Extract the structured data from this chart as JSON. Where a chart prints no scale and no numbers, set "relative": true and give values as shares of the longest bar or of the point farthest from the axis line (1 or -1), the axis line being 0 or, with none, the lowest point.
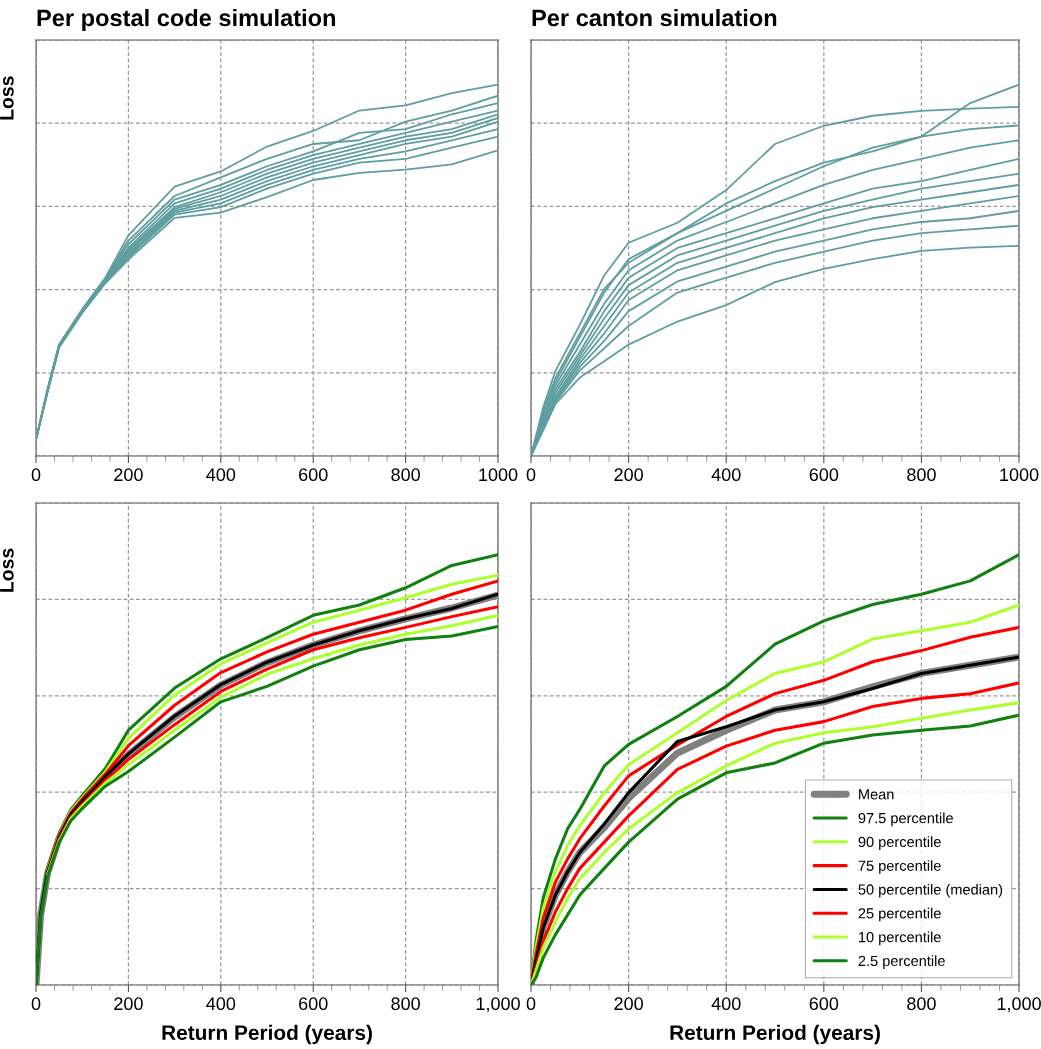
{
  "chart_data": [
    {
      "type": "line",
      "title": "Per postal code simulation",
      "ylabel": "Loss",
      "relative": true,
      "grid": true,
      "xlim": [
        0,
        1000
      ],
      "xticks": [
        0,
        {
          "value": 40,
          "label": null
        },
        {
          "value": 80,
          "label": null
        },
        {
          "value": 120,
          "label": null
        },
        {
          "value": 160,
          "label": null
        },
        200,
        {
          "value": 240,
          "label": null
        },
        {
          "value": 280,
          "label": null
        },
        {
          "value": 320,
          "label": null
        },
        {
          "value": 360,
          "label": null
        },
        400,
        {
          "value": 440,
          "label": null
        },
        {
          "value": 480,
          "label": null
        },
        {
          "value": 520,
          "label": null
        },
        {
          "value": 560,
          "label": null
        },
        600,
        {
          "value": 640,
          "label": null
        },
        {
          "value": 680,
          "label": null
        },
        {
          "value": 720,
          "label": null
        },
        {
          "value": 760,
          "label": null
        },
        800,
        {
          "value": 840,
          "label": null
        },
        {
          "value": 880,
          "label": null
        },
        {
          "value": 920,
          "label": null
        },
        {
          "value": 960,
          "label": null
        },
        1000
      ],
      "x": [
        0,
        25,
        50,
        100,
        150,
        200,
        300,
        400,
        500,
        600,
        700,
        800,
        900,
        1000
      ],
      "series": [
        {
          "color": "#5f9ea0",
          "values": [
            0.044,
            0.18,
            0.3,
            0.395,
            0.48,
            0.594,
            0.725,
            0.766,
            0.833,
            0.875,
            0.93,
            0.944,
            0.977,
            1
          ]
        },
        {
          "color": "#5f9ea0",
          "values": [
            0.044,
            0.179,
            0.299,
            0.394,
            0.478,
            0.58,
            0.7,
            0.75,
            0.8,
            0.84,
            0.85,
            0.9,
            0.93,
            0.97
          ]
        },
        {
          "color": "#5f9ea0",
          "values": [
            0.044,
            0.178,
            0.298,
            0.393,
            0.477,
            0.57,
            0.69,
            0.73,
            0.78,
            0.82,
            0.87,
            0.88,
            0.92,
            0.95
          ]
        },
        {
          "color": "#5f9ea0",
          "values": [
            0.044,
            0.177,
            0.298,
            0.392,
            0.476,
            0.56,
            0.68,
            0.72,
            0.77,
            0.81,
            0.84,
            0.87,
            0.9,
            0.93
          ]
        },
        {
          "color": "#5f9ea0",
          "values": [
            0.044,
            0.176,
            0.297,
            0.391,
            0.474,
            0.555,
            0.67,
            0.71,
            0.76,
            0.8,
            0.83,
            0.86,
            0.88,
            0.92
          ]
        },
        {
          "color": "#5f9ea0",
          "values": [
            0.044,
            0.176,
            0.297,
            0.39,
            0.473,
            0.55,
            0.665,
            0.7,
            0.75,
            0.79,
            0.82,
            0.85,
            0.87,
            0.91
          ]
        },
        {
          "color": "#5f9ea0",
          "values": [
            0.044,
            0.175,
            0.296,
            0.389,
            0.471,
            0.545,
            0.66,
            0.69,
            0.74,
            0.78,
            0.81,
            0.84,
            0.86,
            0.9
          ]
        },
        {
          "color": "#5f9ea0",
          "values": [
            0.044,
            0.174,
            0.295,
            0.388,
            0.47,
            0.54,
            0.655,
            0.68,
            0.73,
            0.77,
            0.8,
            0.82,
            0.85,
            0.88
          ]
        },
        {
          "color": "#5f9ea0",
          "values": [
            0.044,
            0.173,
            0.294,
            0.386,
            0.468,
            0.535,
            0.65,
            0.67,
            0.72,
            0.76,
            0.79,
            0.8,
            0.83,
            0.86
          ]
        },
        {
          "color": "#5f9ea0",
          "values": [
            0.044,
            0.172,
            0.292,
            0.385,
            0.465,
            0.529,
            0.641,
            0.655,
            0.697,
            0.743,
            0.762,
            0.771,
            0.785,
            0.823
          ]
        }
      ]
    },
    {
      "type": "line",
      "title": "Per canton simulation",
      "relative": true,
      "grid": true,
      "xlim": [
        0,
        1000
      ],
      "xticks": [
        0,
        {
          "value": 40,
          "label": null
        },
        {
          "value": 80,
          "label": null
        },
        {
          "value": 120,
          "label": null
        },
        {
          "value": 160,
          "label": null
        },
        200,
        {
          "value": 240,
          "label": null
        },
        {
          "value": 280,
          "label": null
        },
        {
          "value": 320,
          "label": null
        },
        {
          "value": 360,
          "label": null
        },
        400,
        {
          "value": 440,
          "label": null
        },
        {
          "value": 480,
          "label": null
        },
        {
          "value": 520,
          "label": null
        },
        {
          "value": 560,
          "label": null
        },
        600,
        {
          "value": 640,
          "label": null
        },
        {
          "value": 680,
          "label": null
        },
        {
          "value": 720,
          "label": null
        },
        {
          "value": 760,
          "label": null
        },
        800,
        {
          "value": 840,
          "label": null
        },
        {
          "value": 880,
          "label": null
        },
        {
          "value": 920,
          "label": null
        },
        {
          "value": 960,
          "label": null
        },
        1000
      ],
      "x": [
        0,
        25,
        50,
        100,
        150,
        200,
        300,
        400,
        500,
        600,
        700,
        800,
        900,
        1000
      ],
      "series": [
        {
          "color": "#5f9ea0",
          "values": [
            0,
            0.12,
            0.21,
            0.33,
            0.45,
            0.52,
            0.6,
            0.68,
            0.74,
            0.79,
            0.82,
            0.86,
            0.95,
            1
          ]
        },
        {
          "color": "#5f9ea0",
          "values": [
            0,
            0.131,
            0.229,
            0.353,
            0.486,
            0.574,
            0.628,
            0.716,
            0.84,
            0.889,
            0.916,
            0.929,
            0.935,
            0.94
          ]
        },
        {
          "color": "#5f9ea0",
          "values": [
            0,
            0.12,
            0.2,
            0.32,
            0.44,
            0.53,
            0.6,
            0.66,
            0.72,
            0.78,
            0.83,
            0.86,
            0.88,
            0.89
          ]
        },
        {
          "color": "#5f9ea0",
          "values": [
            0,
            0.11,
            0.19,
            0.3,
            0.41,
            0.5,
            0.58,
            0.63,
            0.68,
            0.73,
            0.77,
            0.8,
            0.83,
            0.85
          ]
        },
        {
          "color": "#5f9ea0",
          "values": [
            0,
            0.1,
            0.18,
            0.28,
            0.39,
            0.48,
            0.56,
            0.6,
            0.64,
            0.68,
            0.72,
            0.74,
            0.77,
            0.8
          ]
        },
        {
          "color": "#5f9ea0",
          "values": [
            0,
            0.095,
            0.17,
            0.27,
            0.37,
            0.46,
            0.54,
            0.58,
            0.62,
            0.66,
            0.69,
            0.72,
            0.74,
            0.76
          ]
        },
        {
          "color": "#5f9ea0",
          "values": [
            0,
            0.09,
            0.16,
            0.26,
            0.35,
            0.44,
            0.52,
            0.56,
            0.6,
            0.64,
            0.67,
            0.69,
            0.71,
            0.73
          ]
        },
        {
          "color": "#5f9ea0",
          "values": [
            0,
            0.085,
            0.155,
            0.25,
            0.33,
            0.42,
            0.5,
            0.54,
            0.58,
            0.61,
            0.64,
            0.66,
            0.68,
            0.7
          ]
        },
        {
          "color": "#5f9ea0",
          "values": [
            0,
            0.08,
            0.15,
            0.24,
            0.31,
            0.39,
            0.47,
            0.51,
            0.55,
            0.58,
            0.61,
            0.63,
            0.64,
            0.66
          ]
        },
        {
          "color": "#5f9ea0",
          "values": [
            0,
            0.075,
            0.145,
            0.23,
            0.29,
            0.35,
            0.44,
            0.48,
            0.52,
            0.55,
            0.58,
            0.6,
            0.61,
            0.62
          ]
        },
        {
          "color": "#5f9ea0",
          "values": [
            0,
            0.069,
            0.14,
            0.211,
            0.255,
            0.3,
            0.362,
            0.406,
            0.468,
            0.504,
            0.53,
            0.552,
            0.561,
            0.566
          ]
        }
      ]
    },
    {
      "type": "line",
      "ylabel": "Loss",
      "xlabel": "Return Period (years)",
      "relative": true,
      "grid": true,
      "xlim": [
        0,
        1000
      ],
      "xticks": [
        0,
        {
          "value": 40,
          "label": null
        },
        {
          "value": 80,
          "label": null
        },
        {
          "value": 120,
          "label": null
        },
        {
          "value": 160,
          "label": null
        },
        200,
        {
          "value": 240,
          "label": null
        },
        {
          "value": 280,
          "label": null
        },
        {
          "value": 320,
          "label": null
        },
        {
          "value": 360,
          "label": null
        },
        400,
        {
          "value": 440,
          "label": null
        },
        {
          "value": 480,
          "label": null
        },
        {
          "value": 520,
          "label": null
        },
        {
          "value": 560,
          "label": null
        },
        600,
        {
          "value": 640,
          "label": null
        },
        {
          "value": 680,
          "label": null
        },
        {
          "value": 720,
          "label": null
        },
        {
          "value": 760,
          "label": null
        },
        800,
        {
          "value": 840,
          "label": null
        },
        {
          "value": 880,
          "label": null
        },
        {
          "value": 920,
          "label": null
        },
        {
          "value": 960,
          "label": null
        },
        {
          "value": 1000,
          "label": "1,000"
        }
      ],
      "x": [
        0,
        10,
        25,
        50,
        75,
        100,
        150,
        200,
        300,
        400,
        500,
        600,
        700,
        800,
        900,
        1000
      ],
      "series": [
        {
          "color": "#808080",
          "values": [
            0,
            0.162,
            0.26,
            0.341,
            0.394,
            0.425,
            0.482,
            0.535,
            0.623,
            0.697,
            0.749,
            0.79,
            0.823,
            0.851,
            0.876,
            0.906
          ]
        },
        {
          "color": "#108010",
          "values": [
            0,
            0.169,
            0.27,
            0.353,
            0.407,
            0.44,
            0.503,
            0.592,
            0.69,
            0.758,
            0.807,
            0.859,
            0.883,
            0.923,
            0.975,
            1
          ]
        },
        {
          "color": "#adff2f",
          "values": [
            null,
            null,
            0.267,
            0.349,
            0.403,
            0.435,
            0.495,
            0.573,
            0.674,
            0.746,
            0.795,
            0.843,
            0.871,
            0.9,
            0.931,
            0.952
          ]
        },
        {
          "color": "#ff0000",
          "values": [
            null,
            null,
            0.264,
            0.347,
            0.399,
            0.432,
            0.49,
            0.556,
            0.65,
            0.726,
            0.774,
            0.815,
            0.843,
            0.871,
            0.908,
            0.939
          ]
        },
        {
          "color": "#000000",
          "values": [
            0,
            0.163,
            0.262,
            0.343,
            0.396,
            0.427,
            0.484,
            0.537,
            0.625,
            0.698,
            0.75,
            0.79,
            0.823,
            0.851,
            0.875,
            0.908
          ]
        },
        {
          "color": "#ff0000",
          "values": [
            null,
            null,
            0.258,
            0.339,
            0.39,
            0.42,
            0.475,
            0.524,
            0.605,
            0.682,
            0.734,
            0.779,
            0.807,
            0.831,
            0.856,
            0.879
          ]
        },
        {
          "color": "#adff2f",
          "values": [
            null,
            null,
            0.256,
            0.335,
            0.386,
            0.416,
            0.469,
            0.512,
            0.592,
            0.669,
            0.722,
            0.758,
            0.79,
            0.815,
            0.835,
            0.859
          ]
        },
        {
          "color": "#108010",
          "values": [
            0,
            0.157,
            0.253,
            0.331,
            0.381,
            0.41,
            0.462,
            0.496,
            0.576,
            0.658,
            0.694,
            0.741,
            0.779,
            0.803,
            0.811,
            0.833
          ]
        }
      ]
    },
    {
      "type": "line",
      "xlabel": "Return Period (years)",
      "relative": true,
      "grid": true,
      "legend": "bottom right",
      "xlim": [
        0,
        1000
      ],
      "xticks": [
        0,
        {
          "value": 40,
          "label": null
        },
        {
          "value": 80,
          "label": null
        },
        {
          "value": 120,
          "label": null
        },
        {
          "value": 160,
          "label": null
        },
        200,
        {
          "value": 240,
          "label": null
        },
        {
          "value": 280,
          "label": null
        },
        {
          "value": 320,
          "label": null
        },
        {
          "value": 360,
          "label": null
        },
        400,
        {
          "value": 440,
          "label": null
        },
        {
          "value": 480,
          "label": null
        },
        {
          "value": 520,
          "label": null
        },
        {
          "value": 560,
          "label": null
        },
        600,
        {
          "value": 640,
          "label": null
        },
        {
          "value": 680,
          "label": null
        },
        {
          "value": 720,
          "label": null
        },
        {
          "value": 760,
          "label": null
        },
        800,
        {
          "value": 840,
          "label": null
        },
        {
          "value": 880,
          "label": null
        },
        {
          "value": 920,
          "label": null
        },
        {
          "value": 960,
          "label": null
        },
        {
          "value": 1000,
          "label": "1,000"
        }
      ],
      "x": [
        0,
        10,
        25,
        50,
        75,
        100,
        150,
        200,
        300,
        400,
        500,
        600,
        700,
        800,
        900,
        1000
      ],
      "series": [
        {
          "name": "Mean",
          "color": "#808080",
          "values": [
            0,
            0.056,
            0.133,
            0.209,
            0.263,
            0.308,
            0.366,
            0.434,
            0.539,
            0.592,
            0.639,
            0.658,
            0.693,
            0.724,
            0.743,
            0.762
          ]
        },
        {
          "name": "97.5 percentile",
          "color": "#108010",
          "values": [
            0,
            0.101,
            0.202,
            0.293,
            0.363,
            0.408,
            0.509,
            0.559,
            0.624,
            0.694,
            0.792,
            0.846,
            0.884,
            0.908,
            0.939,
            1
          ]
        },
        {
          "name": "90 percentile",
          "color": "#adff2f",
          "values": [
            0,
            0.086,
            0.178,
            0.263,
            0.324,
            0.37,
            0.447,
            0.512,
            0.586,
            0.661,
            0.724,
            0.751,
            0.804,
            0.823,
            0.843,
            0.883
          ]
        },
        {
          "name": "75 percentile",
          "color": "#ff0000",
          "values": [
            0,
            0.07,
            0.155,
            0.239,
            0.293,
            0.34,
            0.416,
            0.486,
            0.558,
            0.624,
            0.677,
            0.708,
            0.751,
            0.777,
            0.808,
            0.831
          ]
        },
        {
          "name": "50 percentile (median)",
          "color": "#000000",
          "values": [
            0,
            0.056,
            0.133,
            0.209,
            0.263,
            0.308,
            0.374,
            0.447,
            0.566,
            0.6,
            0.639,
            0.658,
            0.689,
            0.724,
            0.743,
            0.762
          ]
        },
        {
          "name": "25 percentile",
          "color": "#ff0000",
          "values": [
            0,
            0.04,
            0.101,
            0.17,
            0.224,
            0.271,
            0.332,
            0.393,
            0.501,
            0.555,
            0.592,
            0.612,
            0.647,
            0.666,
            0.677,
            0.702
          ]
        },
        {
          "name": "10 percentile",
          "color": "#adff2f",
          "values": [
            0,
            0.032,
            0.086,
            0.147,
            0.202,
            0.247,
            0.308,
            0.363,
            0.447,
            0.509,
            0.562,
            0.586,
            0.6,
            0.62,
            0.639,
            0.656
          ]
        },
        {
          "name": "2.5 percentile",
          "color": "#108010",
          "values": [
            0,
            0.017,
            0.063,
            0.117,
            0.163,
            0.209,
            0.271,
            0.332,
            0.432,
            0.493,
            0.516,
            0.562,
            0.581,
            0.592,
            0.602,
            0.627
          ]
        }
      ]
    }
  ]
}
